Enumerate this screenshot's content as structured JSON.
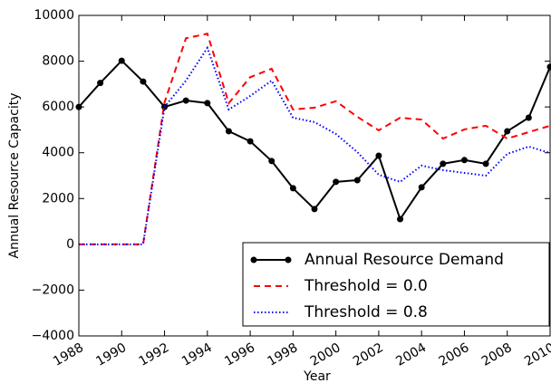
{
  "chart_data": {
    "type": "line",
    "x_label": "Year",
    "y_label": "Annual Resource Capacity",
    "x": [
      1988,
      1989,
      1990,
      1991,
      1992,
      1993,
      1994,
      1995,
      1996,
      1997,
      1998,
      1999,
      2000,
      2001,
      2002,
      2003,
      2004,
      2005,
      2006,
      2007,
      2008,
      2009,
      2010
    ],
    "series": [
      {
        "name": "Annual Resource Demand",
        "color": "#000000",
        "style": "solid",
        "marker": true,
        "values": [
          6000,
          7050,
          8020,
          7110,
          6000,
          6280,
          6170,
          4940,
          4500,
          3640,
          2450,
          1540,
          2730,
          2800,
          3870,
          1100,
          2490,
          3520,
          3680,
          3520,
          4940,
          5530,
          7750
        ]
      },
      {
        "name": "Threshold = 0.0",
        "color": "#ff0000",
        "style": "dashed",
        "marker": false,
        "values": [
          0,
          0,
          0,
          0,
          6200,
          9000,
          9200,
          6170,
          7300,
          7670,
          5890,
          5970,
          6250,
          5570,
          4980,
          5530,
          5450,
          4620,
          5020,
          5180,
          4620,
          4900,
          5180
        ]
      },
      {
        "name": "Threshold = 0.8",
        "color": "#0000ff",
        "style": "dotted",
        "marker": false,
        "values": [
          0,
          0,
          0,
          0,
          6000,
          7150,
          8580,
          5890,
          6480,
          7150,
          5530,
          5340,
          4820,
          4030,
          3040,
          2730,
          3440,
          3240,
          3120,
          3000,
          3950,
          4270,
          3990
        ]
      }
    ],
    "xlim": [
      1988,
      2010
    ],
    "xticks": [
      1988,
      1990,
      1992,
      1994,
      1996,
      1998,
      2000,
      2002,
      2004,
      2006,
      2008,
      2010
    ],
    "ylim": [
      -4000,
      10000
    ],
    "yticks": [
      {
        "value": -4000,
        "label": "−4000"
      },
      {
        "value": -2000,
        "label": "−2000"
      },
      0,
      2000,
      4000,
      6000,
      8000,
      10000
    ],
    "grid": false,
    "legend": "lower right"
  }
}
